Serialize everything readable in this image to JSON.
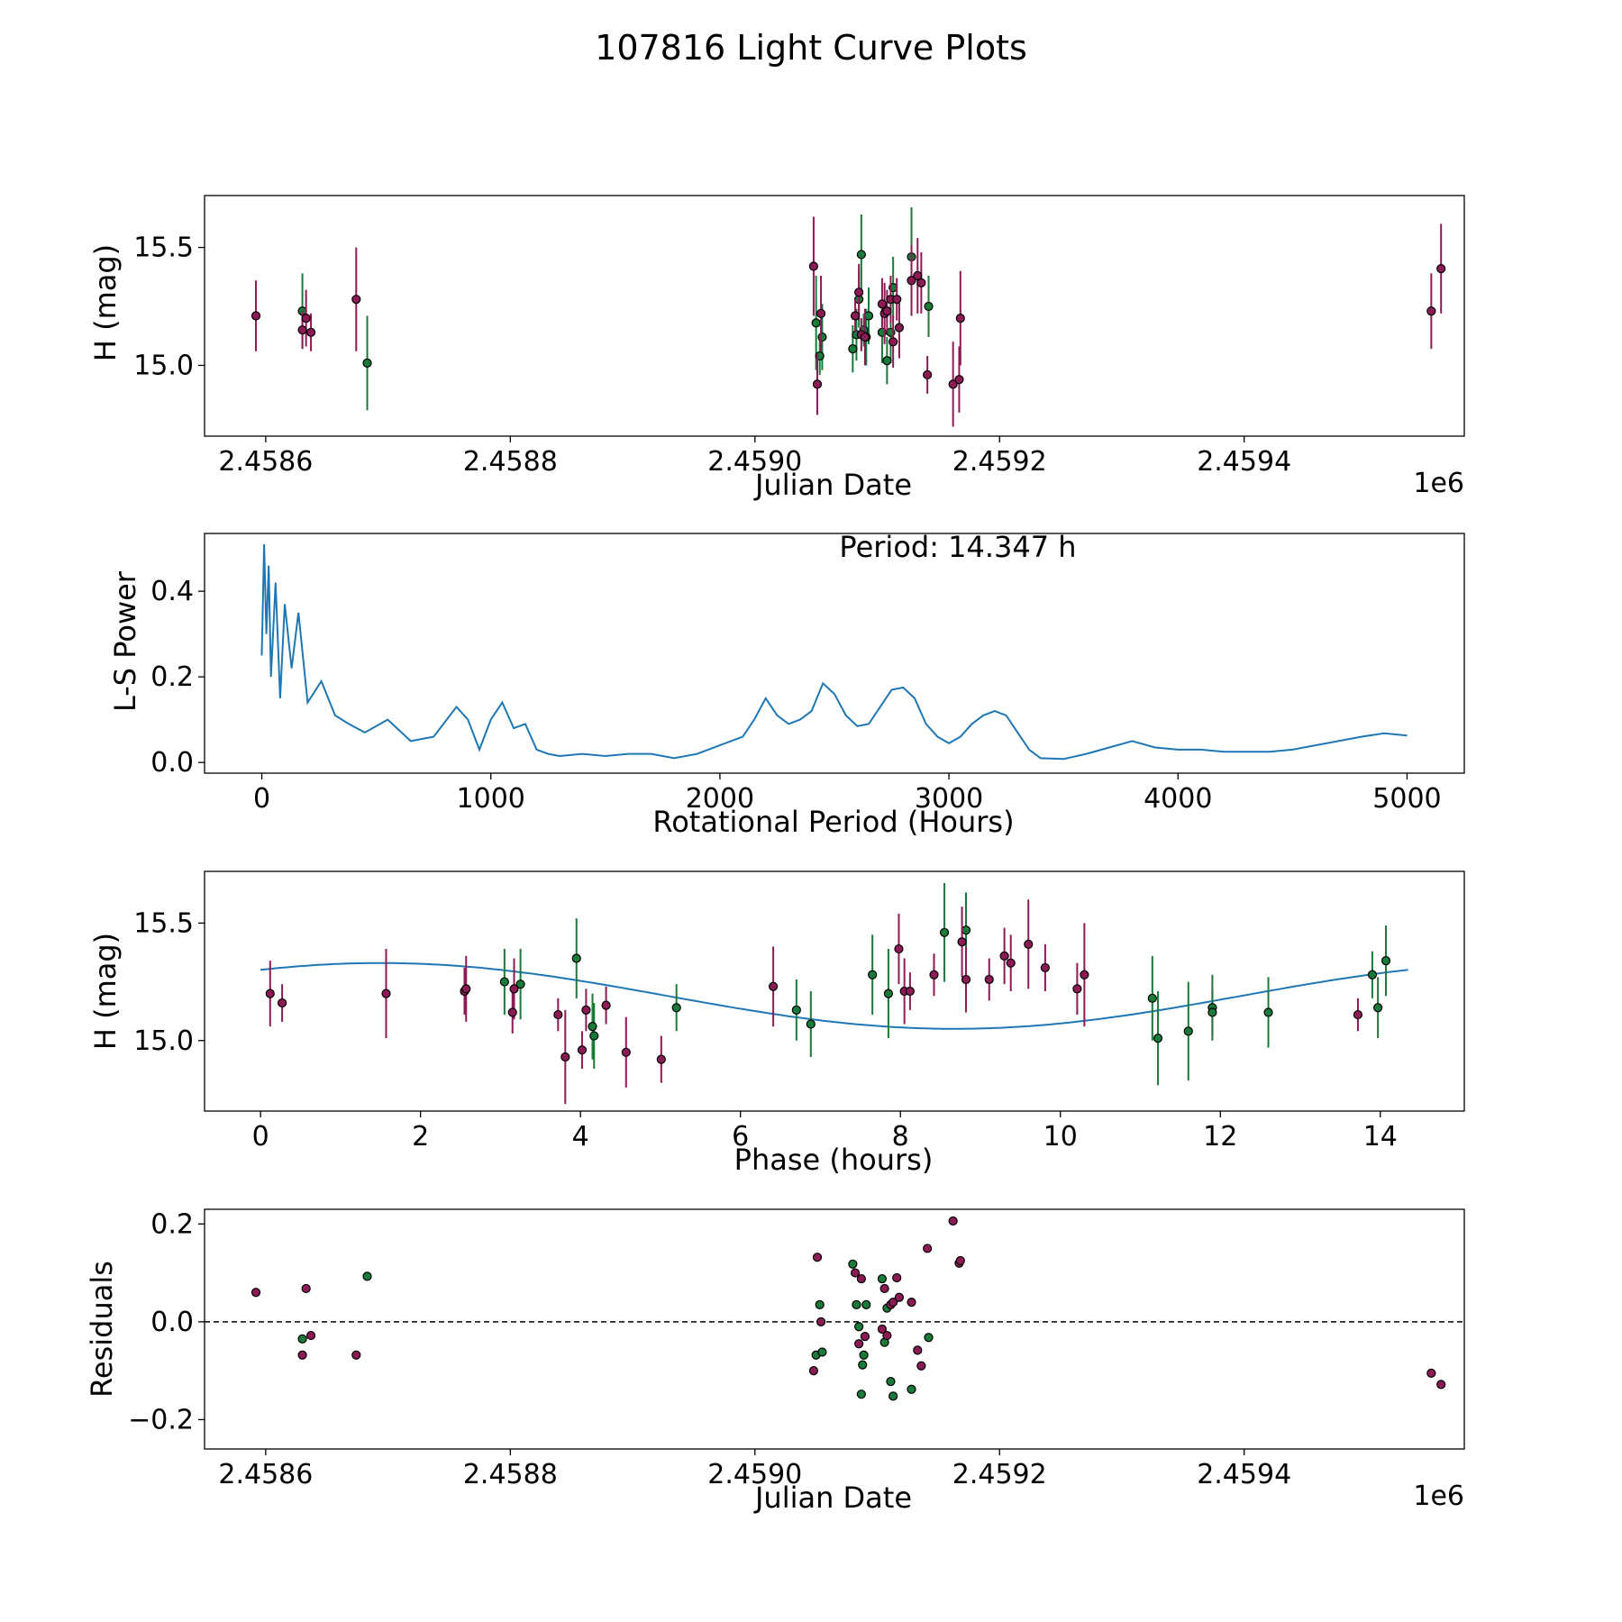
{
  "figure": {
    "title": "107816 Light Curve Plots"
  },
  "colors": {
    "ztf_g": "#1a7a3a",
    "ztf_r": "#8b1a55",
    "fit": "#1f77b4",
    "periodogram": "#1f77b4",
    "zero_line": "#000000"
  },
  "chart_data": [
    {
      "id": "lightcurve",
      "type": "scatter",
      "xlabel": "Julian Date",
      "ylabel": "H (mag)",
      "x_offset_label": "1e6",
      "xlim": [
        2.45855,
        2.45958
      ],
      "ylim": [
        14.7,
        15.72
      ],
      "xticks": [
        2.4586,
        2.4588,
        2.459,
        2.4592,
        2.4594
      ],
      "xtick_labels": [
        "2.4586",
        "2.4588",
        "2.4590",
        "2.4592",
        "2.4594"
      ],
      "yticks": [
        15.0,
        15.5
      ],
      "ytick_labels": [
        "15.0",
        "15.5"
      ],
      "series": [
        {
          "name": "g",
          "color_key": "ztf_g",
          "x": [
            2.45863,
            2.458683,
            2.45905,
            2.459053,
            2.459055,
            2.45908,
            2.459083,
            2.459085,
            2.459087,
            2.459089,
            2.459091,
            2.459093,
            2.459104,
            2.459108,
            2.459111,
            2.459113,
            2.459128,
            2.459142
          ],
          "y": [
            15.23,
            15.01,
            15.18,
            15.04,
            15.12,
            15.07,
            15.13,
            15.28,
            15.47,
            15.15,
            15.12,
            15.21,
            15.14,
            15.02,
            15.14,
            15.33,
            15.46,
            15.25
          ],
          "err": [
            0.16,
            0.2,
            0.2,
            0.08,
            0.14,
            0.1,
            0.11,
            0.12,
            0.17,
            0.07,
            0.12,
            0.12,
            0.13,
            0.1,
            0.13,
            0.13,
            0.21,
            0.13
          ]
        },
        {
          "name": "r",
          "color_key": "ztf_r",
          "x": [
            2.458592,
            2.45863,
            2.458633,
            2.458637,
            2.458674,
            2.459048,
            2.459051,
            2.459054,
            2.459082,
            2.459085,
            2.459087,
            2.45909,
            2.459104,
            2.459106,
            2.459108,
            2.459111,
            2.459113,
            2.459116,
            2.459118,
            2.459128,
            2.459133,
            2.459136,
            2.459141,
            2.459162,
            2.459167,
            2.459168,
            2.459553,
            2.459561
          ],
          "y": [
            15.21,
            15.15,
            15.2,
            15.14,
            15.28,
            15.42,
            14.92,
            15.22,
            15.21,
            15.31,
            15.13,
            15.12,
            15.26,
            15.22,
            15.23,
            15.28,
            15.1,
            15.28,
            15.16,
            15.36,
            15.38,
            15.35,
            14.96,
            14.92,
            14.94,
            15.2,
            15.23,
            15.41
          ],
          "err": [
            0.15,
            0.08,
            0.12,
            0.08,
            0.22,
            0.21,
            0.13,
            0.16,
            0.07,
            0.12,
            0.07,
            0.12,
            0.11,
            0.13,
            0.09,
            0.1,
            0.11,
            0.09,
            0.13,
            0.15,
            0.16,
            0.13,
            0.08,
            0.18,
            0.14,
            0.2,
            0.16,
            0.19
          ]
        }
      ]
    },
    {
      "id": "periodogram",
      "type": "line",
      "xlabel": "Rotational Period (Hours)",
      "ylabel": "L-S Power",
      "annotation": "Period: 14.347 h",
      "xlim": [
        -250,
        5250
      ],
      "ylim": [
        -0.025,
        0.535
      ],
      "xticks": [
        0,
        1000,
        2000,
        3000,
        4000,
        5000
      ],
      "xtick_labels": [
        "0",
        "1000",
        "2000",
        "3000",
        "4000",
        "5000"
      ],
      "yticks": [
        0.0,
        0.2,
        0.4
      ],
      "ytick_labels": [
        "0.0",
        "0.2",
        "0.4"
      ],
      "x": [
        0,
        10,
        20,
        30,
        40,
        60,
        80,
        100,
        130,
        160,
        200,
        260,
        320,
        380,
        450,
        550,
        650,
        750,
        850,
        900,
        950,
        1000,
        1050,
        1100,
        1150,
        1200,
        1250,
        1300,
        1400,
        1500,
        1600,
        1700,
        1800,
        1900,
        2000,
        2100,
        2150,
        2200,
        2250,
        2300,
        2350,
        2400,
        2450,
        2500,
        2550,
        2600,
        2650,
        2700,
        2750,
        2800,
        2850,
        2900,
        2950,
        3000,
        3050,
        3100,
        3150,
        3200,
        3250,
        3300,
        3350,
        3400,
        3500,
        3600,
        3700,
        3800,
        3900,
        4000,
        4100,
        4200,
        4300,
        4400,
        4500,
        4600,
        4700,
        4800,
        4900,
        5000
      ],
      "y": [
        0.25,
        0.51,
        0.3,
        0.46,
        0.2,
        0.42,
        0.15,
        0.37,
        0.22,
        0.35,
        0.14,
        0.19,
        0.11,
        0.09,
        0.07,
        0.1,
        0.05,
        0.06,
        0.13,
        0.1,
        0.03,
        0.1,
        0.14,
        0.08,
        0.09,
        0.03,
        0.02,
        0.015,
        0.02,
        0.015,
        0.02,
        0.02,
        0.01,
        0.02,
        0.04,
        0.06,
        0.1,
        0.15,
        0.11,
        0.09,
        0.1,
        0.12,
        0.185,
        0.16,
        0.11,
        0.085,
        0.09,
        0.13,
        0.17,
        0.175,
        0.15,
        0.09,
        0.06,
        0.045,
        0.06,
        0.09,
        0.11,
        0.12,
        0.11,
        0.07,
        0.03,
        0.01,
        0.008,
        0.02,
        0.035,
        0.05,
        0.035,
        0.03,
        0.03,
        0.025,
        0.025,
        0.025,
        0.03,
        0.04,
        0.05,
        0.06,
        0.068,
        0.063
      ]
    },
    {
      "id": "phased",
      "type": "scatter",
      "xlabel": "Phase (hours)",
      "ylabel": "H (mag)",
      "xlim": [
        -0.7,
        15.05
      ],
      "ylim": [
        14.7,
        15.72
      ],
      "xticks": [
        0,
        2,
        4,
        6,
        8,
        10,
        12,
        14
      ],
      "xtick_labels": [
        "0",
        "2",
        "4",
        "6",
        "8",
        "10",
        "12",
        "14"
      ],
      "yticks": [
        15.0,
        15.5
      ],
      "ytick_labels": [
        "15.0",
        "15.5"
      ],
      "fit": {
        "mean": 15.19,
        "amplitude": 0.14,
        "period": 14.347,
        "peak_phase": 1.5
      },
      "series": [
        {
          "name": "g",
          "color_key": "ztf_g",
          "x": [
            3.05,
            3.25,
            3.95,
            4.15,
            4.17,
            5.2,
            6.7,
            6.88,
            7.65,
            7.85,
            8.55,
            8.82,
            11.15,
            11.22,
            11.6,
            11.9,
            11.9,
            12.6,
            13.9,
            13.97,
            14.07
          ],
          "y": [
            15.25,
            15.24,
            15.35,
            15.06,
            15.02,
            15.14,
            15.13,
            15.07,
            15.28,
            15.2,
            15.46,
            15.47,
            15.18,
            15.01,
            15.04,
            15.14,
            15.12,
            15.12,
            15.28,
            15.14,
            15.34
          ],
          "err": [
            0.14,
            0.15,
            0.17,
            0.14,
            0.14,
            0.1,
            0.13,
            0.14,
            0.17,
            0.19,
            0.21,
            0.16,
            0.18,
            0.2,
            0.21,
            0.14,
            0.1,
            0.15,
            0.1,
            0.13,
            0.15
          ]
        },
        {
          "name": "r",
          "color_key": "ztf_r",
          "x": [
            0.12,
            0.27,
            1.57,
            2.55,
            2.57,
            3.15,
            3.17,
            3.72,
            3.81,
            4.02,
            4.07,
            4.32,
            4.57,
            5.01,
            6.41,
            7.98,
            8.05,
            8.12,
            8.42,
            8.77,
            8.82,
            9.11,
            9.3,
            9.38,
            9.6,
            9.81,
            10.21,
            10.3,
            13.72
          ],
          "y": [
            15.2,
            15.16,
            15.2,
            15.21,
            15.22,
            15.12,
            15.22,
            15.11,
            14.93,
            14.96,
            15.13,
            15.15,
            14.95,
            14.92,
            15.23,
            15.39,
            15.21,
            15.21,
            15.28,
            15.42,
            15.26,
            15.26,
            15.36,
            15.33,
            15.41,
            15.31,
            15.22,
            15.28,
            15.11
          ],
          "err": [
            0.14,
            0.08,
            0.19,
            0.1,
            0.14,
            0.09,
            0.13,
            0.07,
            0.2,
            0.08,
            0.09,
            0.08,
            0.15,
            0.1,
            0.17,
            0.15,
            0.14,
            0.08,
            0.09,
            0.15,
            0.14,
            0.09,
            0.12,
            0.12,
            0.19,
            0.1,
            0.11,
            0.22,
            0.07
          ]
        }
      ]
    },
    {
      "id": "residuals",
      "type": "scatter",
      "xlabel": "Julian Date",
      "ylabel": "Residuals",
      "x_offset_label": "1e6",
      "xlim": [
        2.45855,
        2.45958
      ],
      "ylim": [
        -0.26,
        0.23
      ],
      "xticks": [
        2.4586,
        2.4588,
        2.459,
        2.4592,
        2.4594
      ],
      "xtick_labels": [
        "2.4586",
        "2.4588",
        "2.4590",
        "2.4592",
        "2.4594"
      ],
      "yticks": [
        -0.2,
        0.0,
        0.2
      ],
      "ytick_labels": [
        "−0.2",
        "0.0",
        "0.2"
      ],
      "zero_line": 0.0,
      "series": [
        {
          "name": "g",
          "color_key": "ztf_g",
          "x": [
            2.45863,
            2.458683,
            2.45905,
            2.459053,
            2.459055,
            2.45908,
            2.459083,
            2.459085,
            2.459087,
            2.459088,
            2.459089,
            2.459091,
            2.459104,
            2.459106,
            2.459108,
            2.459111,
            2.459113,
            2.459128,
            2.459142
          ],
          "y": [
            -0.035,
            0.093,
            -0.068,
            0.035,
            -0.062,
            0.118,
            0.035,
            -0.01,
            -0.148,
            -0.088,
            -0.068,
            0.035,
            0.088,
            -0.042,
            0.028,
            -0.122,
            -0.152,
            -0.138,
            -0.032
          ],
          "err": []
        },
        {
          "name": "r",
          "color_key": "ztf_r",
          "x": [
            2.458592,
            2.45863,
            2.458633,
            2.458637,
            2.458674,
            2.459048,
            2.459051,
            2.459054,
            2.459082,
            2.459085,
            2.459087,
            2.45909,
            2.459104,
            2.459106,
            2.459108,
            2.459111,
            2.459113,
            2.459116,
            2.459118,
            2.459128,
            2.459133,
            2.459136,
            2.459141,
            2.459162,
            2.459167,
            2.459168,
            2.459553,
            2.459561
          ],
          "y": [
            0.06,
            -0.068,
            0.068,
            -0.028,
            -0.068,
            -0.1,
            0.132,
            0.0,
            0.1,
            -0.045,
            0.088,
            -0.03,
            -0.015,
            0.068,
            -0.028,
            0.035,
            0.04,
            0.09,
            0.05,
            0.04,
            -0.058,
            -0.09,
            0.15,
            0.206,
            0.12,
            0.125,
            -0.105,
            -0.128
          ],
          "err": []
        }
      ]
    }
  ]
}
